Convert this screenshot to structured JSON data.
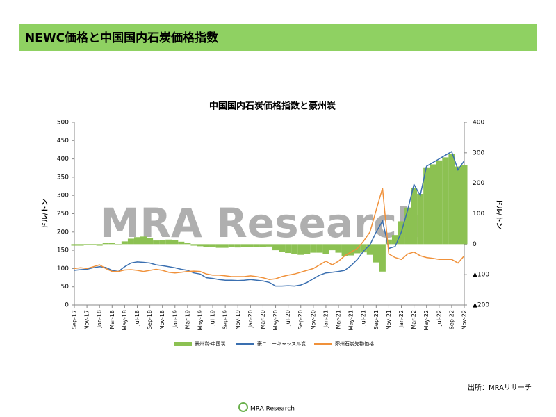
{
  "header": "NEWC価格と中国国内石炭価格指数",
  "source": "出所：MRAリサーチ",
  "footer": "MRA Research",
  "chart_data": {
    "type": "bar-line",
    "title": "中国国内石炭価格指数と豪州炭",
    "watermark": "MRA Research",
    "ylabel": "ドル/トン",
    "y2label": "ドル/トン",
    "ylim": [
      0,
      500
    ],
    "yticks": [
      0,
      50,
      100,
      150,
      200,
      250,
      300,
      350,
      400,
      450,
      500
    ],
    "y2lim": [
      -200,
      400
    ],
    "y2ticks": [
      {
        "value": -200,
        "label": "▲200"
      },
      {
        "value": -100,
        "label": "▲100"
      },
      0,
      100,
      200,
      300,
      400
    ],
    "y2tick_negative_color": "#c00000",
    "categories": [
      "Sep-17",
      null,
      "Nov-17",
      null,
      "Jan-18",
      null,
      "Mar-18",
      null,
      "May-18",
      null,
      "Jul-18",
      null,
      "Sep-18",
      null,
      "Nov-18",
      null,
      "Jan-19",
      null,
      "Mar-19",
      null,
      "May-19",
      null,
      "Jul-19",
      null,
      "Sep-19",
      null,
      "Nov-19",
      null,
      "Jan-20",
      null,
      "Mar-20",
      null,
      "May-20",
      null,
      "Jul-20",
      null,
      "Sep-20",
      null,
      "Nov-20",
      null,
      "Jan-21",
      null,
      "Mar-21",
      null,
      "May-21",
      null,
      "Jul-21",
      null,
      "Sep-21",
      null,
      "Nov-21",
      null,
      "Jan-22",
      null,
      "Mar-22",
      null,
      "May-22",
      null,
      "Jul-22",
      null,
      "Sep-22",
      null,
      "Nov-22"
    ],
    "series": [
      {
        "name": "豪州炭-中国炭",
        "color": "#8cc152",
        "kind": "bar",
        "axis": "y2",
        "values": [
          -5,
          -5,
          -2,
          -3,
          -5,
          3,
          3,
          0,
          9,
          18,
          23,
          25,
          20,
          12,
          13,
          15,
          14,
          8,
          3,
          -5,
          -7,
          -10,
          -9,
          -12,
          -12,
          -10,
          -11,
          -10,
          -10,
          -10,
          -9,
          -8,
          -20,
          -26,
          -29,
          -33,
          -35,
          -33,
          -28,
          -28,
          -32,
          -20,
          -28,
          -40,
          -37,
          -30,
          -27,
          -35,
          -60,
          -90,
          15,
          30,
          75,
          120,
          185,
          165,
          250,
          262,
          275,
          285,
          295,
          255,
          260
        ]
      },
      {
        "name": "豪ニューキャッスル炭",
        "color": "#3a6fb0",
        "kind": "line",
        "values": [
          95,
          97,
          98,
          102,
          105,
          103,
          95,
          92,
          105,
          115,
          118,
          117,
          115,
          110,
          108,
          105,
          102,
          98,
          95,
          88,
          85,
          75,
          73,
          70,
          68,
          68,
          67,
          68,
          70,
          68,
          66,
          62,
          52,
          52,
          53,
          52,
          55,
          62,
          72,
          82,
          88,
          90,
          92,
          95,
          108,
          125,
          148,
          165,
          200,
          230,
          155,
          160,
          200,
          260,
          330,
          300,
          380,
          390,
          400,
          410,
          420,
          370,
          395
        ]
      },
      {
        "name": "鄭州石炭先物価格",
        "color": "#f0913a",
        "kind": "line",
        "values": [
          100,
          102,
          100,
          105,
          110,
          100,
          92,
          92,
          96,
          97,
          95,
          92,
          95,
          98,
          95,
          90,
          88,
          90,
          92,
          93,
          92,
          85,
          82,
          82,
          80,
          78,
          78,
          78,
          80,
          78,
          75,
          70,
          72,
          78,
          82,
          85,
          90,
          95,
          100,
          110,
          120,
          110,
          120,
          135,
          145,
          155,
          175,
          200,
          260,
          320,
          140,
          130,
          125,
          140,
          145,
          135,
          130,
          128,
          125,
          125,
          125,
          115,
          135
        ]
      }
    ]
  }
}
